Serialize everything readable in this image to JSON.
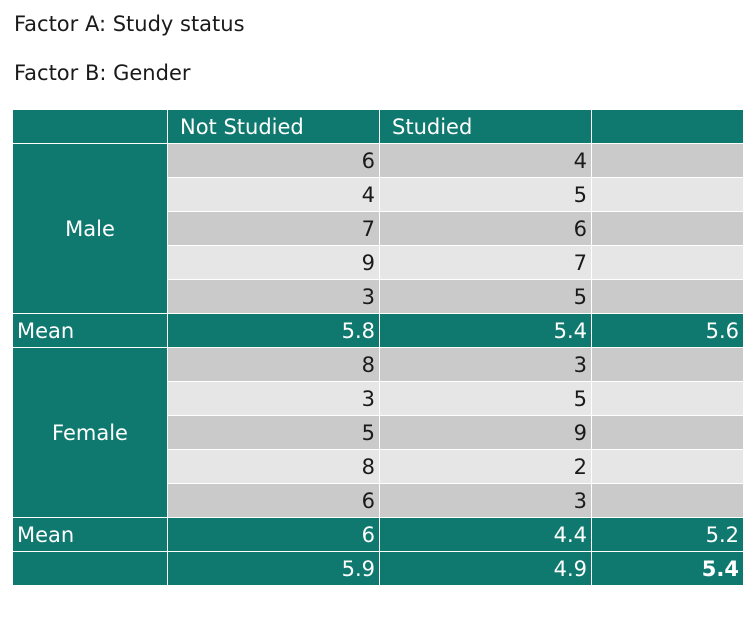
{
  "factor_a": "Factor A: Study status",
  "factor_b": "Factor B: Gender",
  "columns": [
    "Not Studied",
    "Studied",
    ""
  ],
  "groups": [
    {
      "label": "Male",
      "rows": [
        [
          "6",
          "4"
        ],
        [
          "4",
          "5"
        ],
        [
          "7",
          "6"
        ],
        [
          "9",
          "7"
        ],
        [
          "3",
          "5"
        ]
      ],
      "mean_label": "Mean",
      "means": [
        "5.8",
        "5.4",
        "5.6"
      ]
    },
    {
      "label": "Female",
      "rows": [
        [
          "8",
          "3"
        ],
        [
          "3",
          "5"
        ],
        [
          "5",
          "9"
        ],
        [
          "8",
          "2"
        ],
        [
          "6",
          "3"
        ]
      ],
      "mean_label": "Mean",
      "means": [
        "6",
        "4.4",
        "5.2"
      ]
    }
  ],
  "totals": [
    "5.9",
    "4.9",
    "5.4"
  ],
  "colors": {
    "header": "#10796f",
    "row_dark": "#cacaca",
    "row_light": "#e6e6e6"
  }
}
